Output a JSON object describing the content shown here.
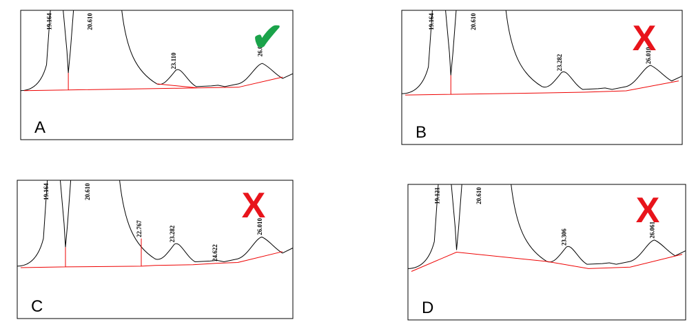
{
  "panels": [
    {
      "letter": "A",
      "peaks": [
        "19.164",
        "20.610",
        "23.110",
        "26.0"
      ],
      "verdict": "✔"
    },
    {
      "letter": "B",
      "peaks": [
        "19.164",
        "20.610",
        "23.282",
        "26.010"
      ],
      "verdict": "X"
    },
    {
      "letter": "C",
      "peaks": [
        "19.164",
        "20.610",
        "22.767",
        "23.282",
        "24.622",
        "26.010"
      ],
      "verdict": "X"
    },
    {
      "letter": "D",
      "peaks": [
        "19.121",
        "20.610",
        "23.306",
        "26.061"
      ],
      "verdict": "X"
    }
  ]
}
